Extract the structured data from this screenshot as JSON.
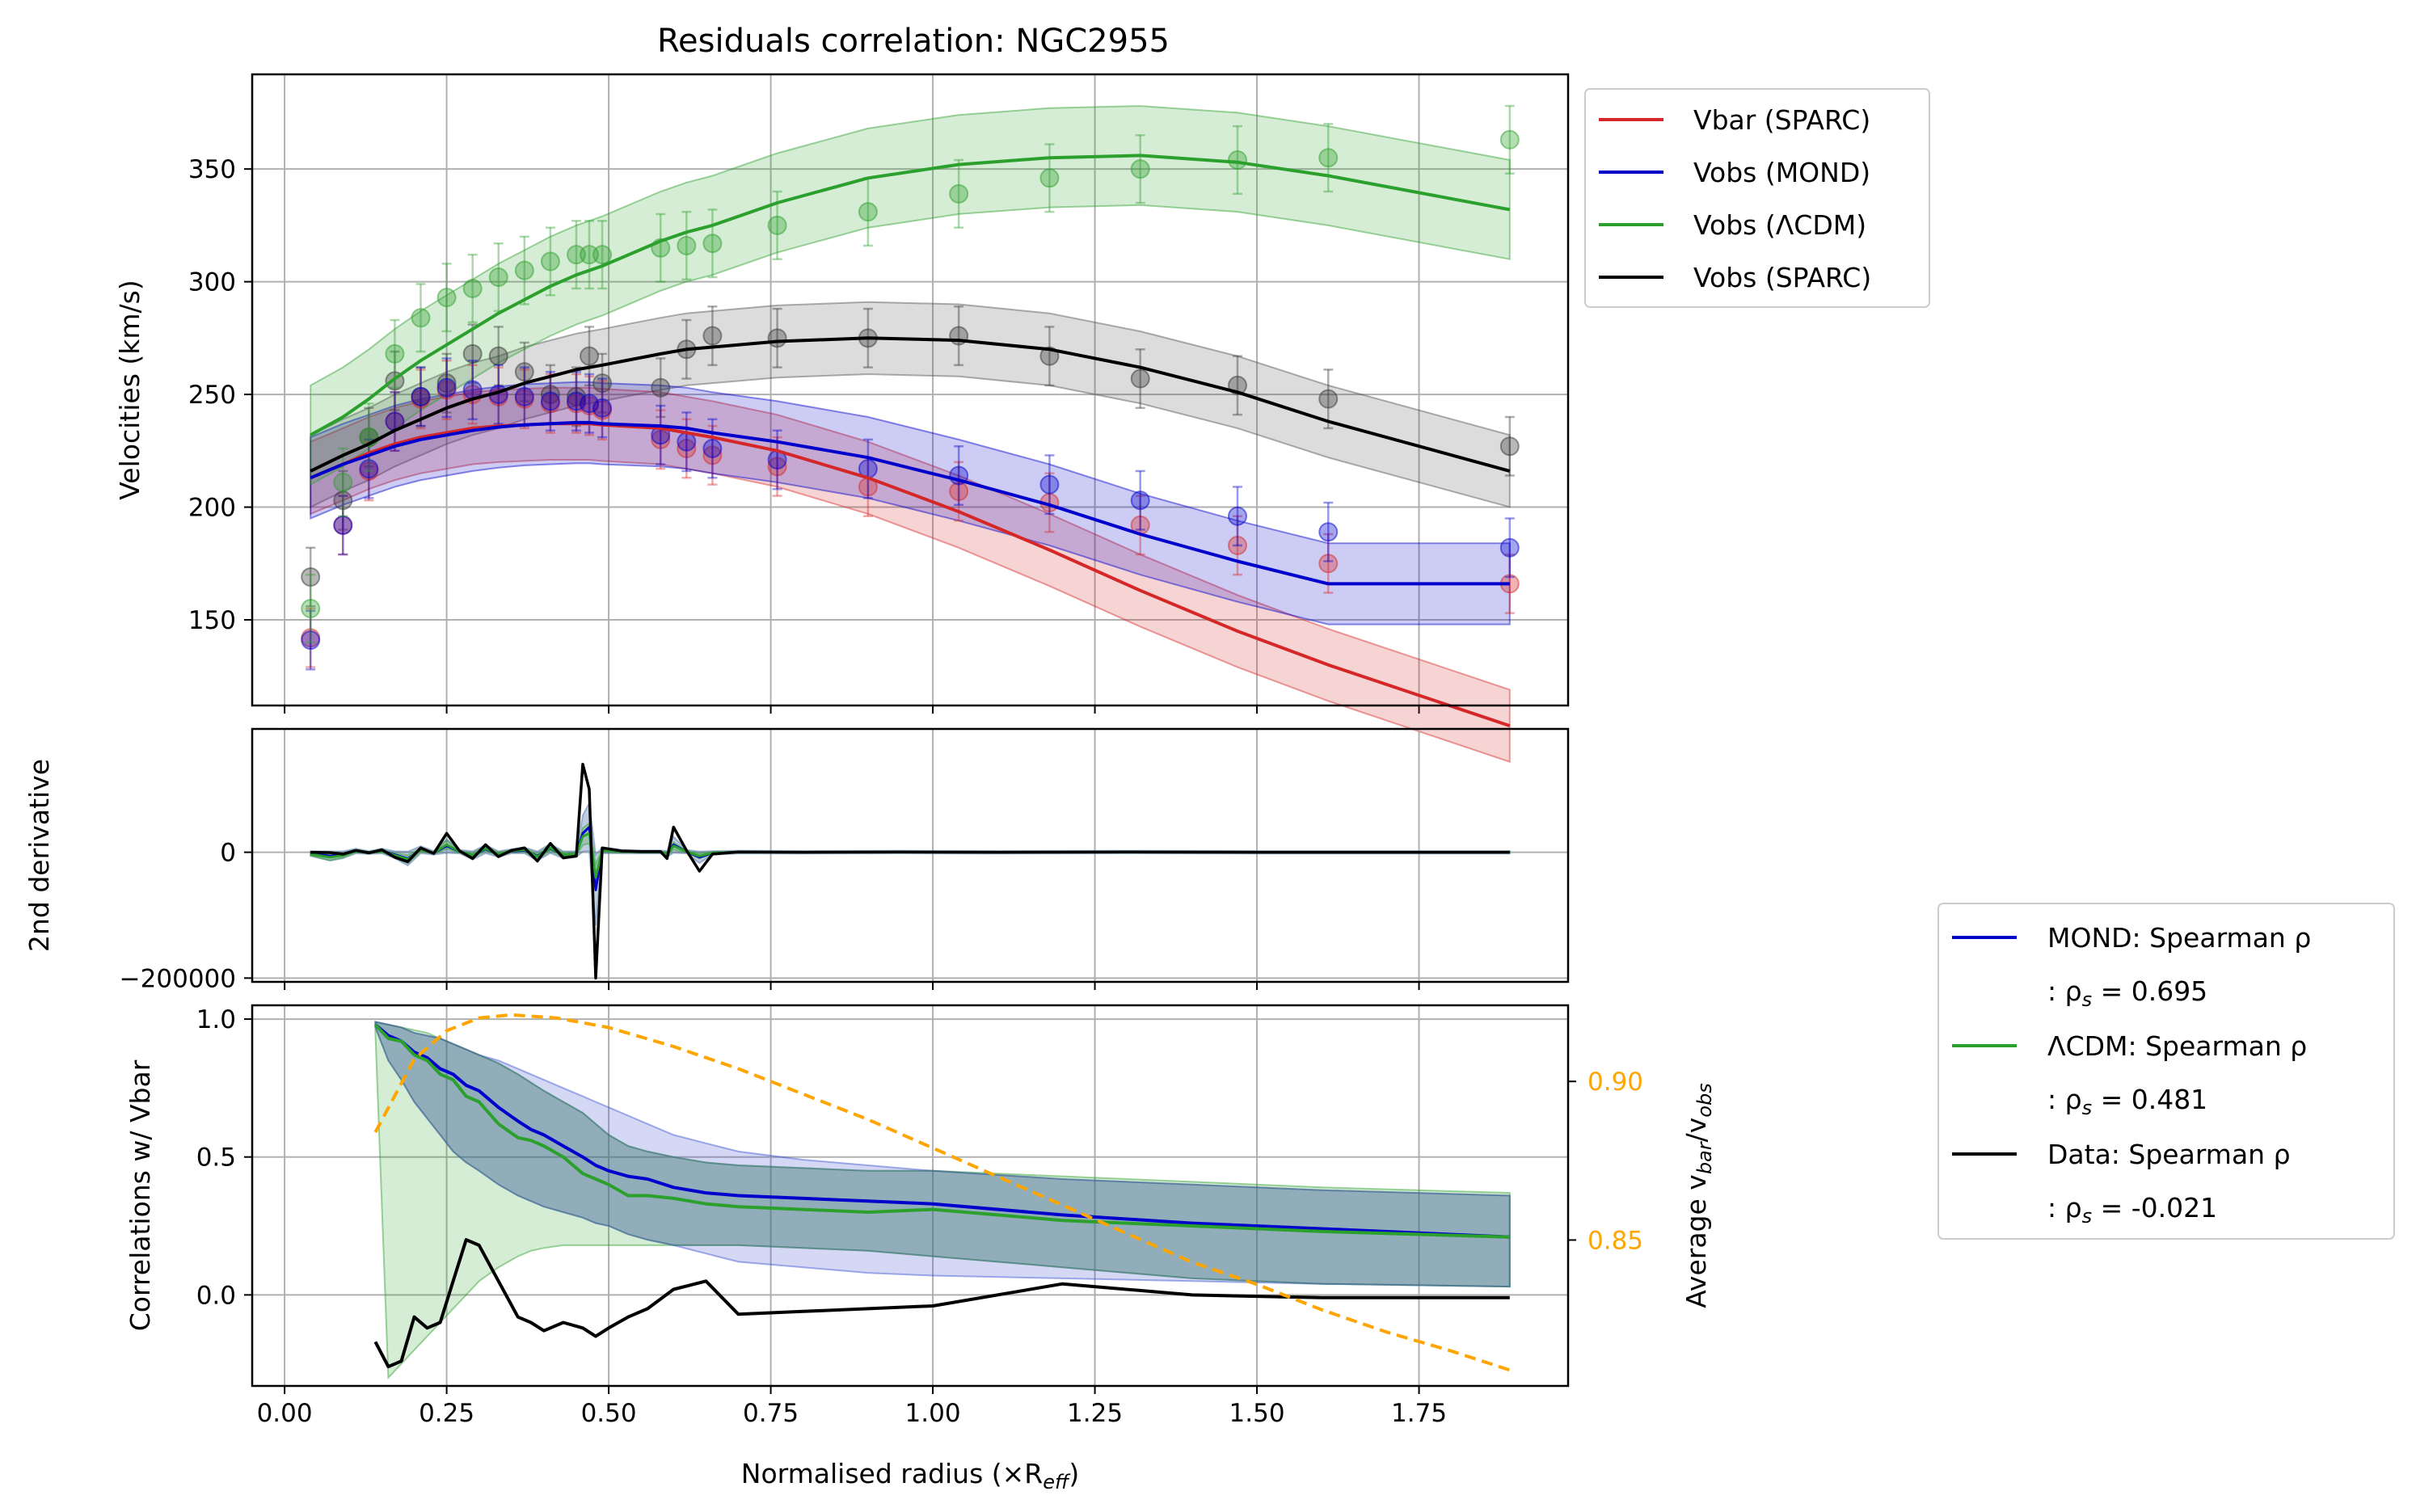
{
  "chart_data": [
    {
      "type": "line",
      "panel": "velocities",
      "title": "Residuals correlation: NGC2955",
      "xlabel": "",
      "ylabel": "Velocities (km/s)",
      "xlim": [
        -0.05,
        1.98
      ],
      "ylim": [
        112,
        392
      ],
      "xticks": [
        "0.00",
        "0.25",
        "0.50",
        "0.75",
        "1.00",
        "1.25",
        "1.50",
        "1.75"
      ],
      "yticks": [
        150,
        200,
        250,
        300,
        350
      ],
      "grid": true,
      "legend_position": "outside-top-right",
      "colors": {
        "vbar": "#d62728",
        "mond": "#0000cd",
        "lcdm": "#2ca02c",
        "sparc": "#000000"
      },
      "legend": [
        "Vbar (SPARC)",
        "Vobs (MOND)",
        "Vobs (ΛCDM)",
        "Vobs (SPARC)"
      ],
      "x": [
        0.04,
        0.09,
        0.13,
        0.17,
        0.21,
        0.25,
        0.29,
        0.33,
        0.37,
        0.41,
        0.45,
        0.47,
        0.49,
        0.58,
        0.62,
        0.66,
        0.76,
        0.9,
        1.04,
        1.18,
        1.32,
        1.47,
        1.61,
        1.89
      ],
      "series": [
        {
          "name": "Vbar (SPARC)",
          "points": [
            142,
            192,
            216,
            238,
            248,
            252,
            250,
            249,
            248,
            246,
            246,
            245,
            243,
            230,
            226,
            223,
            218,
            209,
            207,
            202,
            192,
            183,
            175,
            166
          ],
          "fit": [
            213,
            219,
            224,
            228,
            231,
            233,
            235,
            236,
            236.5,
            237,
            237,
            237,
            236.5,
            235,
            233,
            231,
            225,
            213,
            198,
            181,
            163,
            145,
            130,
            103
          ],
          "band": 16
        },
        {
          "name": "Vobs (MOND)",
          "points": [
            141,
            192,
            217,
            238,
            249,
            253,
            252,
            250,
            249,
            247,
            247,
            246,
            244,
            232,
            229,
            226,
            221,
            217,
            214,
            210,
            203,
            196,
            189,
            182
          ],
          "fit": [
            213,
            219,
            223,
            227,
            230,
            232,
            234,
            235.5,
            236.5,
            237,
            237.5,
            237.5,
            237,
            236,
            235,
            233,
            229,
            222,
            212,
            201,
            188,
            176,
            166,
            166
          ],
          "band": 18
        },
        {
          "name": "Vobs (ΛCDM)",
          "points": [
            155,
            211,
            231,
            268,
            284,
            293,
            297,
            302,
            305,
            309,
            312,
            312,
            312,
            315,
            316,
            317,
            325,
            331,
            339,
            346,
            350,
            354,
            355,
            363
          ],
          "fit": [
            232,
            240,
            248,
            257,
            265,
            272,
            279,
            286,
            292,
            298,
            303,
            305,
            307,
            318,
            322,
            325,
            335,
            346,
            352,
            355,
            356,
            353,
            347,
            332
          ],
          "band": 22
        },
        {
          "name": "Vobs (SPARC)",
          "points": [
            169,
            203,
            231,
            256,
            249,
            255,
            268,
            267,
            260,
            250,
            249,
            267,
            255,
            253,
            270,
            276,
            275,
            275,
            276,
            267,
            257,
            254,
            248,
            227
          ],
          "fit": [
            216,
            223,
            228,
            234,
            239,
            244,
            248,
            251,
            255,
            258,
            261,
            262,
            263,
            268,
            270,
            271,
            273.5,
            275,
            274,
            270,
            262,
            251,
            238,
            216
          ],
          "band": 16
        }
      ]
    },
    {
      "type": "line",
      "panel": "second-derivative",
      "ylabel": "2nd derivative",
      "ylim": [
        -206000,
        196000
      ],
      "yticks": [
        0,
        -200000
      ],
      "ytick_labels": [
        "0",
        "−200000"
      ],
      "grid": true,
      "x": [
        0.04,
        0.07,
        0.09,
        0.11,
        0.13,
        0.15,
        0.17,
        0.19,
        0.21,
        0.23,
        0.25,
        0.27,
        0.29,
        0.31,
        0.33,
        0.35,
        0.37,
        0.39,
        0.41,
        0.43,
        0.45,
        0.46,
        0.47,
        0.48,
        0.49,
        0.52,
        0.55,
        0.58,
        0.59,
        0.6,
        0.62,
        0.64,
        0.66,
        0.7,
        0.8,
        0.95,
        1.1,
        1.3,
        1.5,
        1.7,
        1.89
      ],
      "series": [
        {
          "name": "data",
          "values": [
            0,
            -500,
            -3000,
            3000,
            -1000,
            4000,
            -8000,
            -15000,
            7000,
            -2000,
            30000,
            2000,
            -10000,
            12000,
            -7000,
            3000,
            7000,
            -14000,
            14000,
            -9000,
            -6000,
            140000,
            100000,
            -200000,
            7000,
            2000,
            1000,
            1000,
            -10000,
            40000,
            3000,
            -30000,
            -3000,
            500,
            0,
            400,
            0,
            500,
            0,
            0,
            0
          ]
        },
        {
          "name": "MOND",
          "values": [
            -2000,
            -6000,
            -4000,
            2000,
            -500,
            2000,
            -4000,
            -10000,
            4000,
            -1000,
            10000,
            1000,
            -5000,
            5000,
            -3000,
            1500,
            3000,
            -6000,
            6000,
            -4000,
            -3000,
            30000,
            40000,
            -60000,
            3000,
            1000,
            500,
            500,
            -3000,
            12000,
            1000,
            -8000,
            -1000,
            300,
            0,
            200,
            0,
            200,
            0,
            0,
            0
          ]
        },
        {
          "name": "ΛCDM",
          "values": [
            -3000,
            -8000,
            -5000,
            2000,
            -500,
            2000,
            -5000,
            -11000,
            4000,
            -1000,
            12000,
            1000,
            -5000,
            6000,
            -3000,
            2000,
            4000,
            -7000,
            7000,
            -4000,
            -3000,
            25000,
            30000,
            -40000,
            3000,
            1000,
            500,
            500,
            -3000,
            10000,
            1000,
            -6000,
            -1000,
            300,
            0,
            200,
            0,
            200,
            0,
            0,
            0
          ]
        }
      ]
    },
    {
      "type": "line",
      "panel": "correlations",
      "xlabel": "Normalised radius (×R",
      "xlabel_sub": "eff",
      "xlabel_close": ")",
      "ylabel": "Correlations w/ Vbar",
      "ylim": [
        -0.33,
        1.05
      ],
      "yticks": [
        0.0,
        0.5,
        1.0
      ],
      "ytick_labels": [
        "0.0",
        "0.5",
        "1.0"
      ],
      "y2label": "Average v",
      "y2label_sub1": "bar",
      "y2label_slash": "/v",
      "y2label_sub2": "obs",
      "y2lim": [
        0.804,
        0.924
      ],
      "y2ticks": [
        0.85,
        0.9
      ],
      "y2tick_labels": [
        "0.85",
        "0.90"
      ],
      "y2color": "#ffa500",
      "grid": true,
      "legend_position": "outside-right",
      "legend": [
        "MOND: Spearman ρ",
        ": ρ",
        "s",
        " = 0.695",
        "ΛCDM: Spearman ρ",
        ": ρ",
        "s",
        " = 0.481",
        "Data: Spearman ρ",
        ": ρ",
        "s",
        " = -0.021"
      ],
      "x": [
        0.14,
        0.16,
        0.18,
        0.2,
        0.22,
        0.24,
        0.26,
        0.28,
        0.3,
        0.33,
        0.36,
        0.38,
        0.4,
        0.43,
        0.46,
        0.48,
        0.5,
        0.53,
        0.56,
        0.6,
        0.65,
        0.7,
        0.8,
        0.9,
        1.0,
        1.2,
        1.4,
        1.6,
        1.89
      ],
      "series": [
        {
          "name": "MOND",
          "values": [
            0.98,
            0.94,
            0.92,
            0.88,
            0.86,
            0.82,
            0.8,
            0.76,
            0.74,
            0.68,
            0.63,
            0.6,
            0.58,
            0.54,
            0.5,
            0.47,
            0.45,
            0.43,
            0.42,
            0.39,
            0.37,
            0.36,
            0.35,
            0.34,
            0.33,
            0.29,
            0.26,
            0.24,
            0.21
          ],
          "band_low": [
            0.97,
            0.85,
            0.78,
            0.7,
            0.64,
            0.58,
            0.52,
            0.48,
            0.45,
            0.4,
            0.36,
            0.34,
            0.32,
            0.3,
            0.28,
            0.26,
            0.25,
            0.22,
            0.2,
            0.18,
            0.15,
            0.12,
            0.1,
            0.08,
            0.07,
            0.06,
            0.05,
            0.04,
            0.03
          ],
          "band_high": [
            0.99,
            0.98,
            0.97,
            0.95,
            0.94,
            0.93,
            0.91,
            0.89,
            0.87,
            0.85,
            0.82,
            0.8,
            0.78,
            0.75,
            0.72,
            0.7,
            0.68,
            0.65,
            0.62,
            0.58,
            0.55,
            0.52,
            0.49,
            0.47,
            0.45,
            0.42,
            0.4,
            0.38,
            0.36
          ]
        },
        {
          "name": "ΛCDM",
          "values": [
            0.98,
            0.93,
            0.92,
            0.87,
            0.85,
            0.8,
            0.78,
            0.72,
            0.7,
            0.62,
            0.57,
            0.56,
            0.54,
            0.5,
            0.44,
            0.42,
            0.4,
            0.36,
            0.36,
            0.35,
            0.33,
            0.32,
            0.31,
            0.3,
            0.31,
            0.27,
            0.25,
            0.23,
            0.21
          ],
          "band_low": [
            0.95,
            -0.3,
            -0.25,
            -0.2,
            -0.15,
            -0.1,
            -0.05,
            0.0,
            0.05,
            0.1,
            0.14,
            0.16,
            0.17,
            0.18,
            0.18,
            0.18,
            0.18,
            0.18,
            0.18,
            0.18,
            0.18,
            0.18,
            0.17,
            0.16,
            0.14,
            0.1,
            0.06,
            0.04,
            0.03
          ],
          "band_high": [
            0.99,
            0.98,
            0.97,
            0.96,
            0.95,
            0.93,
            0.91,
            0.89,
            0.87,
            0.84,
            0.8,
            0.77,
            0.74,
            0.7,
            0.66,
            0.62,
            0.58,
            0.54,
            0.52,
            0.5,
            0.48,
            0.47,
            0.46,
            0.45,
            0.45,
            0.43,
            0.41,
            0.39,
            0.37
          ]
        },
        {
          "name": "Data",
          "values": [
            -0.17,
            -0.26,
            -0.24,
            -0.08,
            -0.12,
            -0.1,
            0.05,
            0.2,
            0.18,
            0.05,
            -0.08,
            -0.1,
            -0.13,
            -0.1,
            -0.12,
            -0.15,
            -0.12,
            -0.08,
            -0.05,
            0.02,
            0.05,
            -0.07,
            -0.06,
            -0.05,
            -0.04,
            0.04,
            0.0,
            -0.01,
            -0.01
          ]
        },
        {
          "name": "Average vbar/vobs",
          "axis": "right",
          "x": [
            0.14,
            0.2,
            0.25,
            0.3,
            0.35,
            0.42,
            0.5,
            0.6,
            0.7,
            0.8,
            0.9,
            1.0,
            1.1,
            1.2,
            1.3,
            1.4,
            1.5,
            1.6,
            1.7,
            1.8,
            1.89
          ],
          "values": [
            0.884,
            0.907,
            0.916,
            0.92,
            0.921,
            0.92,
            0.917,
            0.911,
            0.904,
            0.896,
            0.888,
            0.879,
            0.87,
            0.861,
            0.852,
            0.843,
            0.836,
            0.828,
            0.821,
            0.815,
            0.809
          ]
        }
      ]
    }
  ]
}
